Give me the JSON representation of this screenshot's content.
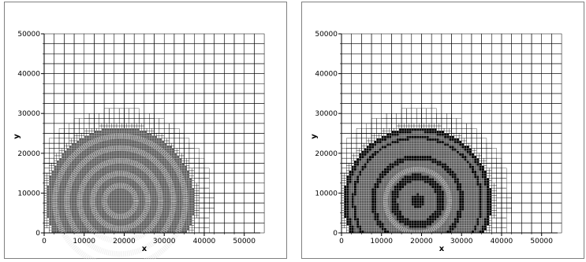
{
  "chart_data": [
    {
      "type": "heatmap",
      "subtype": "adaptive-mesh-refinement-plot",
      "xlabel": "x",
      "ylabel": "y",
      "xlim": [
        0,
        54000
      ],
      "ylim": [
        0,
        50000
      ],
      "x_ticks": [
        0,
        10000,
        20000,
        30000,
        40000,
        50000
      ],
      "y_ticks": [
        0,
        10000,
        20000,
        30000,
        40000,
        50000
      ],
      "x_tick_labels": [
        "0",
        "10000",
        "20000",
        "30000",
        "40000",
        "50000"
      ],
      "y_tick_labels": [
        "0",
        "10000",
        "20000",
        "30000",
        "40000",
        "50000"
      ],
      "grid": true,
      "center": [
        19000,
        8000
      ],
      "rings": [
        {
          "r_inner": 0,
          "r_outer": 1800,
          "level": 2
        },
        {
          "r_inner": 3200,
          "r_outer": 4600,
          "level": 2
        },
        {
          "r_inner": 6200,
          "r_outer": 7600,
          "level": 2
        },
        {
          "r_inner": 9400,
          "r_outer": 10800,
          "level": 2
        },
        {
          "r_inner": 12600,
          "r_outer": 14000,
          "level": 2
        },
        {
          "r_inner": 15600,
          "r_outer": 17000,
          "level": 2
        }
      ],
      "background_radius": 18500,
      "colors": {
        "background": "#ffffff",
        "fill": "#5e5e5e",
        "dark": "#000000",
        "grid": "#000000",
        "fine_grid": "#cfcfcf"
      }
    },
    {
      "type": "heatmap",
      "subtype": "adaptive-mesh-refinement-plot",
      "xlabel": "x",
      "ylabel": "y",
      "xlim": [
        0,
        54000
      ],
      "ylim": [
        0,
        50000
      ],
      "x_ticks": [
        0,
        10000,
        20000,
        30000,
        40000,
        50000
      ],
      "y_ticks": [
        0,
        10000,
        20000,
        30000,
        40000,
        50000
      ],
      "x_tick_labels": [
        "0",
        "10000",
        "20000",
        "30000",
        "40000",
        "50000"
      ],
      "y_tick_labels": [
        "0",
        "10000",
        "20000",
        "30000",
        "40000",
        "50000"
      ],
      "grid": true,
      "center": [
        19000,
        8000
      ],
      "rings": [
        {
          "r_inner": 0,
          "r_outer": 1700,
          "level": 3
        },
        {
          "r_inner": 5000,
          "r_outer": 6800,
          "level": 3
        },
        {
          "r_inner": 7400,
          "r_outer": 8600,
          "level": 2
        },
        {
          "r_inner": 10400,
          "r_outer": 11600,
          "level": 3
        },
        {
          "r_inner": 15600,
          "r_outer": 16300,
          "level": 3
        },
        {
          "r_inner": 17400,
          "r_outer": 18900,
          "level": 3
        }
      ],
      "background_radius": 18500,
      "colors": {
        "background": "#ffffff",
        "fill": "#5e5e5e",
        "dark": "#000000",
        "grid": "#000000",
        "fine_grid": "#cfcfcf"
      }
    }
  ]
}
